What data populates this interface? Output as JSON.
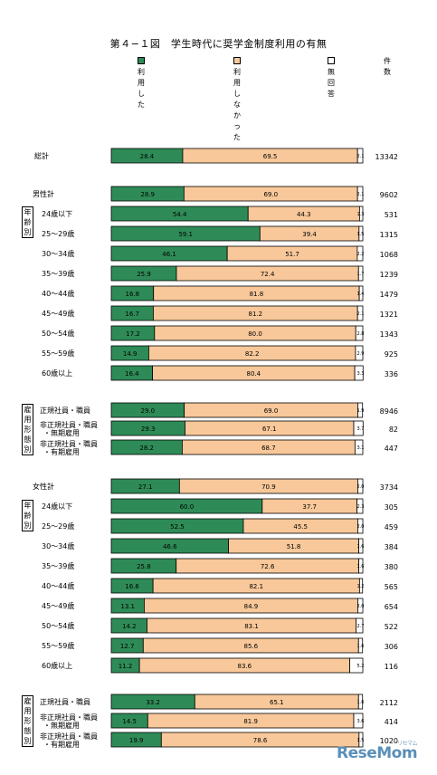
{
  "title": "第４−１図　学生時代に奨学金制度利用の有無",
  "legend": {
    "used": "利用した",
    "not_used": "利用しなかった",
    "no_answer": "無回答",
    "count_header": "件数"
  },
  "colors": {
    "used": "#2e8b57",
    "not_used": "#f8c89a",
    "no_answer": "#ffffff",
    "border": "#000000"
  },
  "group_labels": [
    "年齢別",
    "雇用形態別",
    "年齢別",
    "雇用形態別"
  ],
  "logo": {
    "text": "ReseMom",
    "sub": "リセマム"
  },
  "chart_data": {
    "type": "bar",
    "orientation": "horizontal",
    "stacked": true,
    "xlim": [
      0,
      100
    ],
    "unit": "%",
    "series_names": [
      "利用した",
      "利用しなかった",
      "無回答"
    ],
    "categories": [
      "総計",
      "男性計",
      "24歳以下",
      "25～29歳",
      "30～34歳",
      "35～39歳",
      "40～44歳",
      "45～49歳",
      "50～54歳",
      "55～59歳",
      "60歳以上",
      "正規社員・職員",
      "非正規社員・職員・無期雇用",
      "非正規社員・職員・有期雇用",
      "女性計",
      "24歳以下",
      "25～29歳",
      "30～34歳",
      "35～39歳",
      "40～44歳",
      "45～49歳",
      "50～54歳",
      "55～59歳",
      "60歳以上",
      "正規社員・職員",
      "非正規社員・職員・無期雇用",
      "非正規社員・職員・有期雇用"
    ],
    "series": [
      {
        "name": "利用した",
        "values": [
          28.4,
          28.9,
          54.4,
          59.1,
          46.1,
          25.9,
          16.8,
          16.7,
          17.2,
          14.9,
          16.4,
          29.0,
          29.3,
          28.2,
          27.1,
          60.0,
          52.5,
          46.6,
          25.8,
          16.6,
          13.1,
          14.2,
          12.7,
          11.2,
          33.2,
          14.5,
          19.9
        ]
      },
      {
        "name": "利用しなかった",
        "values": [
          69.5,
          69.0,
          44.3,
          39.4,
          51.7,
          72.4,
          81.8,
          81.2,
          80.0,
          82.2,
          80.4,
          69.0,
          67.1,
          68.7,
          70.9,
          37.7,
          45.5,
          51.8,
          72.6,
          82.1,
          84.9,
          83.1,
          85.6,
          83.6,
          65.1,
          81.9,
          78.6
        ]
      },
      {
        "name": "無回答",
        "values": [
          2.1,
          2.1,
          1.3,
          1.5,
          2.2,
          1.7,
          1.4,
          2.1,
          2.8,
          2.9,
          3.3,
          1.9,
          3.7,
          3.1,
          2.0,
          2.3,
          2.0,
          1.6,
          1.6,
          1.2,
          2.0,
          2.7,
          1.6,
          5.2,
          1.6,
          3.6,
          1.5
        ]
      }
    ],
    "counts": [
      13342,
      9602,
      531,
      1315,
      1068,
      1239,
      1479,
      1321,
      1343,
      925,
      336,
      8946,
      82,
      447,
      3734,
      305,
      459,
      384,
      380,
      565,
      654,
      522,
      306,
      116,
      2112,
      414,
      1020
    ]
  }
}
